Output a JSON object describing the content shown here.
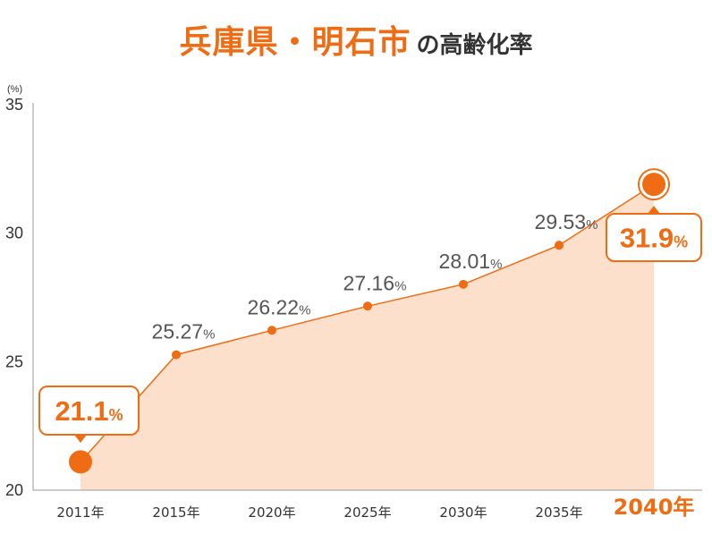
{
  "title": {
    "main": "兵庫県・明石市",
    "sub": "の高齢化率"
  },
  "colors": {
    "accent": "#ee6c13",
    "area_fill": "#fde0cc",
    "label_text": "#555555"
  },
  "chart_data": {
    "type": "area",
    "x": [
      "2011年",
      "2015年",
      "2020年",
      "2025年",
      "2030年",
      "2035年",
      "2040年"
    ],
    "values": [
      21.1,
      25.27,
      26.22,
      27.16,
      28.01,
      29.53,
      31.9
    ],
    "data_labels": [
      "21.1",
      "25.27",
      "26.22",
      "27.16",
      "28.01",
      "29.53",
      "31.9"
    ],
    "label_unit": "%",
    "y_unit": "(%)",
    "y_ticks": [
      20,
      25,
      30,
      35
    ],
    "ylim": [
      20,
      35
    ],
    "highlighted": [
      0,
      6
    ],
    "highlighted_x_label": 6,
    "grid": false
  }
}
